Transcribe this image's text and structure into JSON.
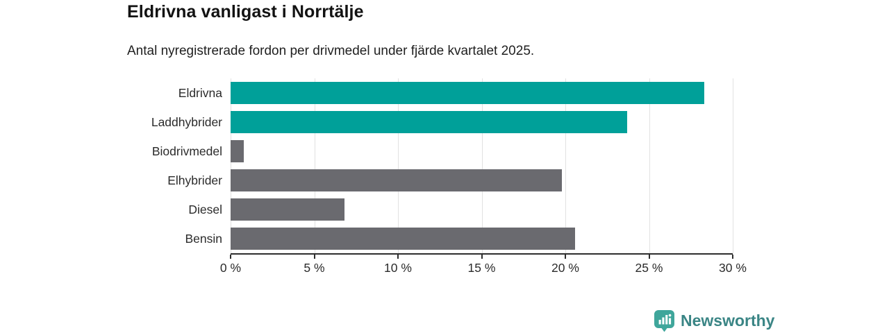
{
  "chart_data": {
    "type": "bar",
    "orientation": "horizontal",
    "title": "Eldrivna vanligast i Norrtälje",
    "subtitle": "Antal nyregistrerade fordon per drivmedel under fjärde kvartalet 2025.",
    "categories": [
      "Eldrivna",
      "Laddhybrider",
      "Biodrivmedel",
      "Elhybrider",
      "Diesel",
      "Bensin"
    ],
    "values": [
      28.3,
      23.7,
      0.8,
      19.8,
      6.8,
      20.6
    ],
    "bar_colors": [
      "#00A099",
      "#00A099",
      "#6A6A6F",
      "#6A6A6F",
      "#6A6A6F",
      "#6A6A6F"
    ],
    "xlim": [
      0,
      30
    ],
    "x_ticks": [
      0,
      5,
      10,
      15,
      20,
      25,
      30
    ],
    "x_tick_labels": [
      "0 %",
      "5 %",
      "10 %",
      "15 %",
      "20 %",
      "25 %",
      "30 %"
    ],
    "xlabel": "",
    "ylabel": "",
    "grid": "vertical",
    "legend": "none"
  },
  "footer": {
    "brand": "Newsworthy",
    "logo_icon": "bar-chart-speech-bubble"
  },
  "colors": {
    "accent_teal": "#00A099",
    "neutral_gray": "#6A6A6F",
    "gridline": "#E1E1E1",
    "axis": "#2E2E2E",
    "logo_icon_teal": "#3FA69B",
    "logo_text_teal": "#3A8585",
    "background": "#FFFFFF"
  }
}
